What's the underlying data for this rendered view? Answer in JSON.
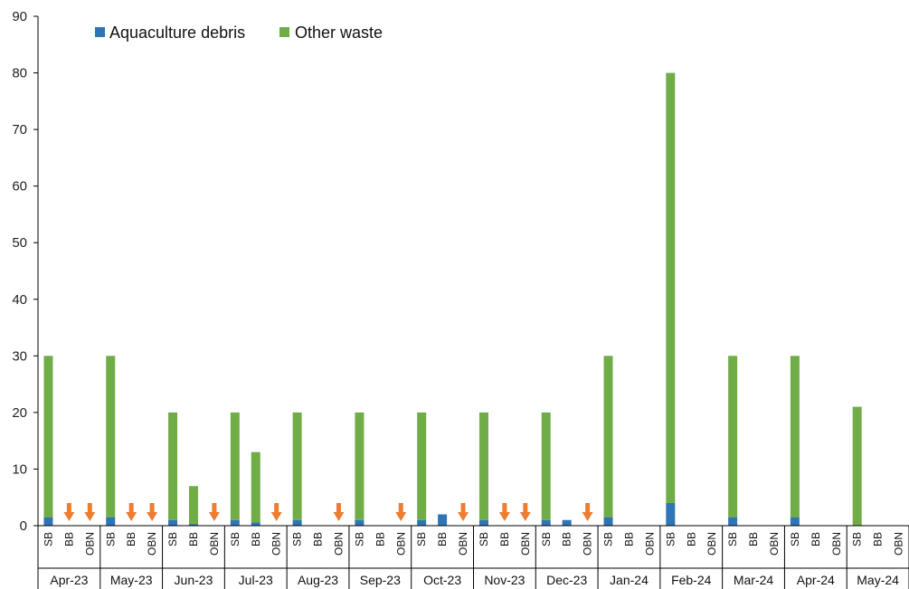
{
  "chart_data": {
    "type": "bar",
    "stacked": true,
    "ylim": [
      0,
      90
    ],
    "yticks": [
      0,
      10,
      20,
      30,
      40,
      50,
      60,
      70,
      80,
      90
    ],
    "legend": {
      "position": "top-left"
    },
    "grid": false,
    "sites": [
      "SB",
      "BB",
      "OBN"
    ],
    "months": [
      "Apr-23",
      "May-23",
      "Jun-23",
      "Jul-23",
      "Aug-23",
      "Sep-23",
      "Oct-23",
      "Nov-23",
      "Dec-23",
      "Jan-24",
      "Feb-24",
      "Mar-24",
      "Apr-24",
      "May-24"
    ],
    "series": [
      {
        "name": "Aquaculture debris",
        "color": "#2e75b6",
        "values": [
          [
            1.5,
            0,
            0
          ],
          [
            1.5,
            0,
            0
          ],
          [
            1,
            0.3,
            0
          ],
          [
            1,
            0.6,
            0
          ],
          [
            1,
            0,
            0
          ],
          [
            1,
            0,
            0
          ],
          [
            1,
            2,
            0
          ],
          [
            1,
            0,
            0
          ],
          [
            1,
            1,
            0
          ],
          [
            1.5,
            0,
            0
          ],
          [
            4,
            0,
            0
          ],
          [
            1.5,
            0,
            0
          ],
          [
            1.5,
            0,
            0
          ],
          [
            0,
            0,
            0
          ]
        ]
      },
      {
        "name": "Other waste",
        "color": "#70ad47",
        "values": [
          [
            28.5,
            0,
            0
          ],
          [
            28.5,
            0,
            0
          ],
          [
            19,
            6.7,
            0
          ],
          [
            19,
            12.4,
            0
          ],
          [
            19,
            0,
            0
          ],
          [
            19,
            0,
            0
          ],
          [
            19,
            0,
            0
          ],
          [
            19,
            0,
            0
          ],
          [
            19,
            0,
            0
          ],
          [
            28.5,
            0,
            0
          ],
          [
            76,
            0,
            0
          ],
          [
            28.5,
            0,
            0
          ],
          [
            28.5,
            0,
            0
          ],
          [
            21,
            0,
            0
          ]
        ]
      }
    ],
    "no_sample_markers": {
      "color": "#ed7d31",
      "icon": "down-arrow-icon",
      "cells": [
        [
          0,
          1
        ],
        [
          0,
          2
        ],
        [
          1,
          1
        ],
        [
          1,
          2
        ],
        [
          2,
          2
        ],
        [
          3,
          2
        ],
        [
          4,
          2
        ],
        [
          5,
          2
        ],
        [
          6,
          2
        ],
        [
          7,
          1
        ],
        [
          7,
          2
        ],
        [
          8,
          2
        ]
      ]
    }
  }
}
